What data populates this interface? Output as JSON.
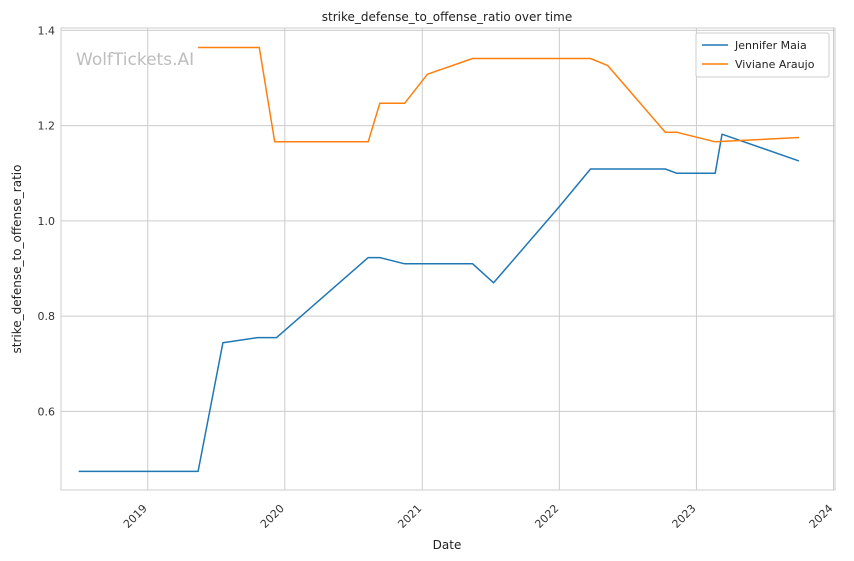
{
  "watermark": "WolfTickets.AI",
  "chart_data": {
    "type": "line",
    "title": "strike_defense_to_offense_ratio over time",
    "xlabel": "Date",
    "ylabel": "strike_defense_to_offense_ratio",
    "xlim": [
      "2018-05-15",
      "2024-01-05"
    ],
    "ylim": [
      0.435,
      1.405
    ],
    "yticks": [
      0.6,
      0.8,
      1.0,
      1.2,
      1.4
    ],
    "ytick_labels": [
      "0.6",
      "0.8",
      "1.0",
      "1.2",
      "1.4"
    ],
    "xticks": [
      "2019-01-01",
      "2020-01-01",
      "2021-01-01",
      "2022-01-01",
      "2023-01-01",
      "2024-01-01"
    ],
    "xtick_labels": [
      "2019",
      "2020",
      "2021",
      "2022",
      "2023",
      "2024"
    ],
    "grid": true,
    "legend_position": "top-right",
    "series": [
      {
        "name": "Jennifer Maia",
        "color": "#1f77b4",
        "x": [
          "2018-07-01",
          "2019-05-15",
          "2019-07-20",
          "2019-10-20",
          "2019-12-10",
          "2020-08-10",
          "2020-09-10",
          "2020-11-15",
          "2021-05-15",
          "2021-07-10",
          "2022-01-01",
          "2022-03-25",
          "2022-10-10",
          "2022-11-10",
          "2023-02-20",
          "2023-03-10",
          "2023-10-01"
        ],
        "y": [
          0.474,
          0.474,
          0.744,
          0.755,
          0.755,
          0.923,
          0.923,
          0.91,
          0.91,
          0.87,
          1.03,
          1.109,
          1.109,
          1.1,
          1.1,
          1.182,
          1.126
        ]
      },
      {
        "name": "Viviane Araujo",
        "color": "#ff7f0e",
        "x": [
          "2019-05-15",
          "2019-10-25",
          "2019-12-05",
          "2020-08-10",
          "2020-09-10",
          "2020-11-15",
          "2021-01-15",
          "2021-05-15",
          "2022-03-25",
          "2022-05-10",
          "2022-10-10",
          "2022-11-10",
          "2023-02-20",
          "2023-10-01"
        ],
        "y": [
          1.364,
          1.364,
          1.166,
          1.166,
          1.247,
          1.247,
          1.308,
          1.341,
          1.341,
          1.326,
          1.186,
          1.186,
          1.166,
          1.175
        ]
      }
    ]
  }
}
